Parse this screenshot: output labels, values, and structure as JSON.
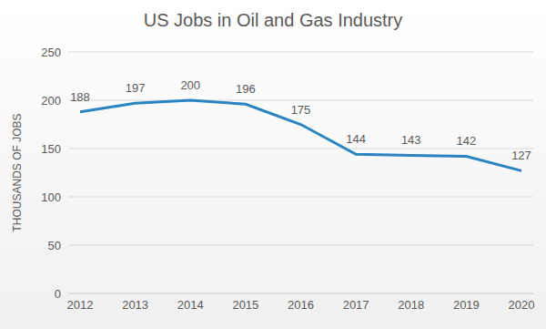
{
  "chart_data": {
    "type": "line",
    "title": "US Jobs in Oil and Gas Industry",
    "y_label": "THOUSANDS OF JOBS",
    "categories": [
      "2012",
      "2013",
      "2014",
      "2015",
      "2016",
      "2017",
      "2018",
      "2019",
      "2020"
    ],
    "values": [
      188,
      197,
      200,
      196,
      175,
      144,
      143,
      142,
      127
    ],
    "color": "#2a84c0",
    "ylim": [
      0,
      250
    ],
    "yticks": [
      0,
      50,
      100,
      150,
      200,
      250
    ],
    "grid": true,
    "data_labels": true
  }
}
